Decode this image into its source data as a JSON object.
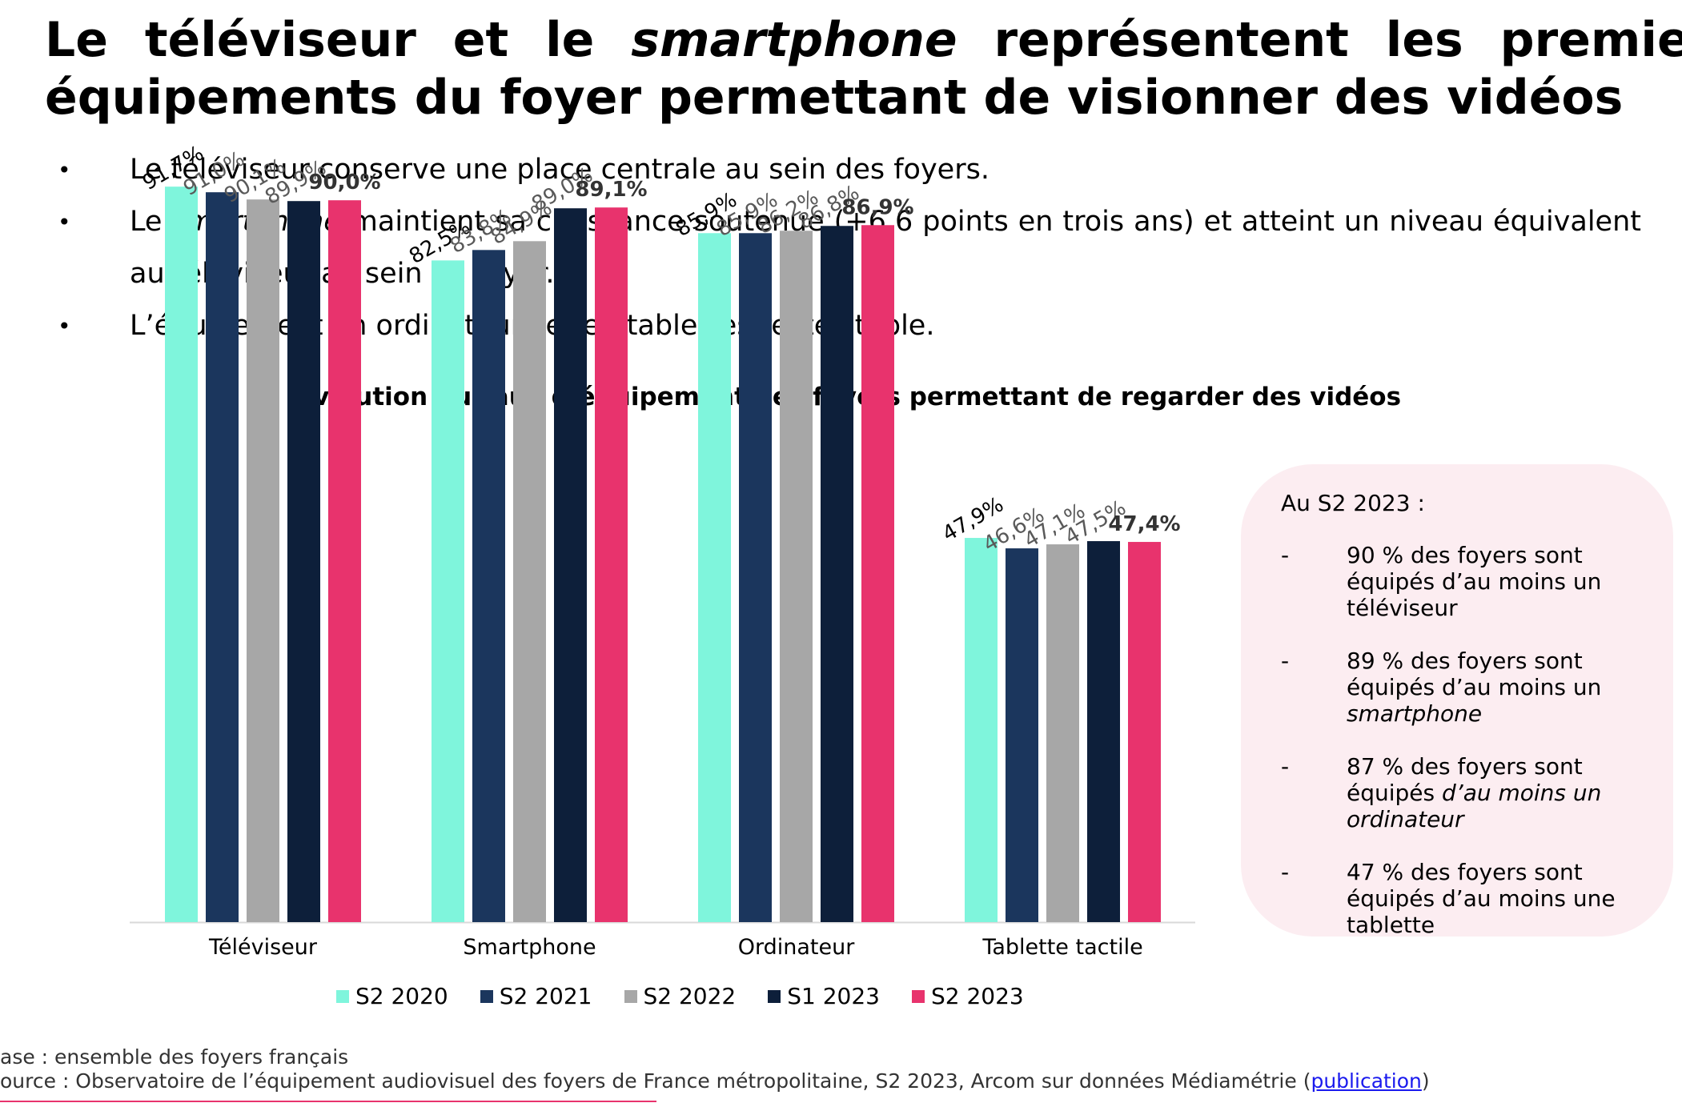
{
  "title": {
    "line1_words": [
      "Le",
      "téléviseur",
      "et",
      "le",
      "smartphone",
      "représentent",
      "les",
      "premiers"
    ],
    "line1_italic_index": 4,
    "line2": "équipements du foyer permettant de visionner des vidéos"
  },
  "bullets": {
    "b1": "Le téléviseur conserve une place centrale au sein des foyers.",
    "b2_pre": "Le ",
    "b2_italic": "smartphone",
    "b2_post": " maintient sa croissance soutenue (+6,6 points en trois ans) et atteint un niveau équivalent au téléviseur au sein du foyer.",
    "b3": "L’équipement en ordinateurs et en tablettes reste stable."
  },
  "chart_data": {
    "type": "bar",
    "title": "Évolution du taux d’équipement des foyers permettant de regarder des vidéos",
    "categories": [
      "Téléviseur",
      "Smartphone",
      "Ordinateur",
      "Tablette tactile"
    ],
    "series": [
      {
        "name": "S2 2020",
        "values": [
          91.7,
          82.5,
          85.9,
          47.9
        ],
        "labels": [
          "91,7%",
          "82,5%",
          "85,9%",
          "47,9%"
        ],
        "color": "#7ff5dc"
      },
      {
        "name": "S2 2021",
        "values": [
          91.0,
          83.8,
          85.9,
          46.6
        ],
        "labels": [
          "91,0%",
          "83,8%",
          "85,9%",
          "46,6%"
        ],
        "color": "#1b365d"
      },
      {
        "name": "S2 2022",
        "values": [
          90.1,
          84.9,
          86.2,
          47.1
        ],
        "labels": [
          "90,1%",
          "84,9%",
          "86,2%",
          "47,1%"
        ],
        "color": "#a7a7a7"
      },
      {
        "name": "S1 2023",
        "values": [
          89.9,
          89.0,
          86.8,
          47.5
        ],
        "labels": [
          "89,9%",
          "89,0%",
          "86,8%",
          "47,5%"
        ],
        "color": "#0d1f3a"
      },
      {
        "name": "S2 2023",
        "values": [
          90.0,
          89.1,
          86.9,
          47.4
        ],
        "labels": [
          "90,0%",
          "89,1%",
          "86,9%",
          "47,4%"
        ],
        "color": "#e8336d"
      }
    ],
    "ylim": [
      0,
      100
    ],
    "grid": false,
    "legend": "bottom"
  },
  "side_box": {
    "heading": "Au S2 2023 :",
    "dash": "-",
    "items": [
      {
        "pre": "90 % des foyers sont équipés d’au moins un téléviseur",
        "italic": "",
        "post": ""
      },
      {
        "pre": "89 % des foyers sont équipés d’au moins un ",
        "italic": "smartphone",
        "post": ""
      },
      {
        "pre": "87 % des foyers sont équipés ",
        "italic": "d’au moins un ordinateur",
        "post": ""
      },
      {
        "pre": "47 % des foyers sont équipés d’au moins une tablette",
        "italic": "",
        "post": ""
      }
    ]
  },
  "footer": {
    "base": "ase : ensemble des foyers français",
    "source_pre": "ource : Observatoire de l’équipement audiovisuel des foyers de France métropolitaine, S2 2023, Arcom sur données Médiamétrie (",
    "source_link": "publication",
    "source_post": ")"
  }
}
